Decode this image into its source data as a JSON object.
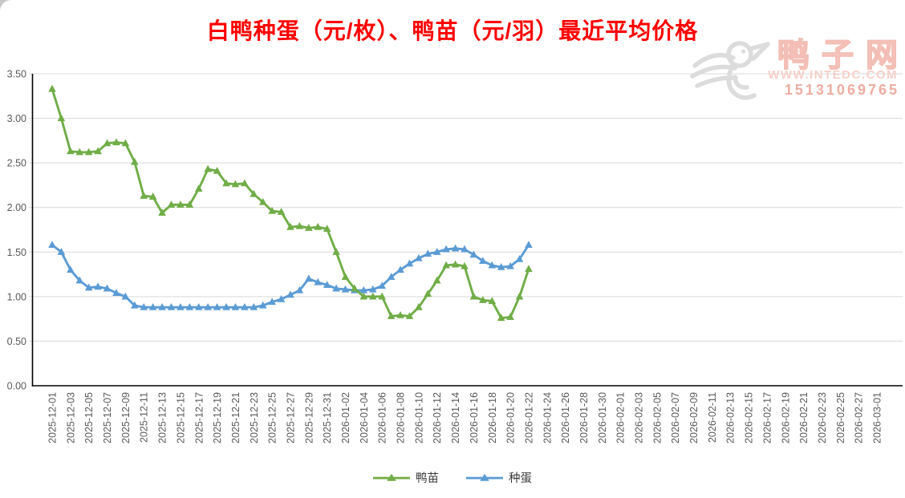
{
  "title": "白鸭种蛋（元/枚）、鸭苗（元/羽）最近平均价格",
  "watermark": {
    "brand": "鸭子网",
    "url": "WWW.INTEDC.COM",
    "phone": "15131069765"
  },
  "colors": {
    "title_red": "#FF0000",
    "gridline": "#D9D9D9",
    "axis_line": "#000000",
    "tick_text": "#595959",
    "legend_text": "#3A3A3A",
    "duckling_green": "#70AD47",
    "egg_blue": "#5B9BD5",
    "watermark_pink": "#F3BEB5",
    "watermark_gray": "#DCDCDC"
  },
  "chart_data": {
    "type": "line",
    "title": "白鸭种蛋（元/枚）、鸭苗（元/羽）最近平均价格",
    "xlabel": "",
    "ylabel": "",
    "ylim": [
      0,
      3.5
    ],
    "y_tick_step": 0.5,
    "y_ticks": [
      "0.00",
      "0.50",
      "1.00",
      "1.50",
      "2.00",
      "2.50",
      "3.00",
      "3.50"
    ],
    "grid": "horizontal",
    "legend_position": "bottom",
    "start_date": "2025-12-01",
    "interval": "daily",
    "x_days_total": 90,
    "x_tick_labels": [
      "2025-12-01",
      "2025-12-03",
      "2025-12-05",
      "2025-12-07",
      "2025-12-09",
      "2025-12-11",
      "2025-12-13",
      "2025-12-15",
      "2025-12-17",
      "2025-12-19",
      "2025-12-21",
      "2025-12-23",
      "2025-12-25",
      "2025-12-27",
      "2025-12-29",
      "2025-12-31",
      "2026-01-02",
      "2026-01-04",
      "2026-01-06",
      "2026-01-08",
      "2026-01-10",
      "2026-01-12",
      "2026-01-14",
      "2026-01-16",
      "2026-01-18",
      "2026-01-20",
      "2026-01-22",
      "2026-01-24",
      "2026-01-26",
      "2026-01-28",
      "2026-01-30",
      "2026-02-01",
      "2026-02-03",
      "2026-02-05",
      "2026-02-07",
      "2026-02-09",
      "2026-02-11",
      "2026-02-13",
      "2026-02-15",
      "2026-02-17",
      "2026-02-19",
      "2026-02-21",
      "2026-02-23",
      "2026-02-25",
      "2026-02-27",
      "2026-03-01"
    ],
    "series": [
      {
        "name": "鸭苗",
        "unit": "元/羽",
        "color": "#70AD47",
        "marker": "triangle",
        "values": [
          3.33,
          3.0,
          2.63,
          2.62,
          2.62,
          2.63,
          2.72,
          2.73,
          2.72,
          2.51,
          2.13,
          2.12,
          1.94,
          2.03,
          2.03,
          2.03,
          2.21,
          2.43,
          2.41,
          2.27,
          2.26,
          2.27,
          2.15,
          2.06,
          1.96,
          1.95,
          1.78,
          1.79,
          1.77,
          1.78,
          1.76,
          1.5,
          1.22,
          1.09,
          1.0,
          1.0,
          1.0,
          0.78,
          0.79,
          0.78,
          0.88,
          1.03,
          1.18,
          1.35,
          1.36,
          1.34,
          1.0,
          0.96,
          0.95,
          0.76,
          0.77,
          1.0,
          1.31
        ]
      },
      {
        "name": "种蛋",
        "unit": "元/枚",
        "color": "#5B9BD5",
        "marker": "triangle",
        "values": [
          1.58,
          1.5,
          1.3,
          1.18,
          1.1,
          1.11,
          1.09,
          1.04,
          1.0,
          0.9,
          0.88,
          0.88,
          0.88,
          0.88,
          0.88,
          0.88,
          0.88,
          0.88,
          0.88,
          0.88,
          0.88,
          0.88,
          0.88,
          0.9,
          0.94,
          0.97,
          1.02,
          1.07,
          1.2,
          1.16,
          1.13,
          1.09,
          1.08,
          1.07,
          1.07,
          1.08,
          1.12,
          1.22,
          1.3,
          1.37,
          1.43,
          1.48,
          1.5,
          1.53,
          1.54,
          1.53,
          1.47,
          1.4,
          1.35,
          1.33,
          1.34,
          1.42,
          1.58
        ]
      }
    ]
  }
}
